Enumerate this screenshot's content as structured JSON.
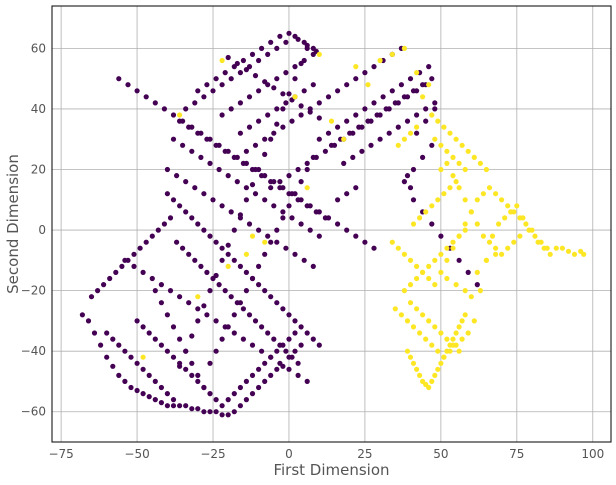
{
  "chart_data": {
    "type": "scatter",
    "xlabel": "First Dimension",
    "ylabel": "Second Dimension",
    "xlim": [
      -78,
      106
    ],
    "ylim": [
      -70,
      74
    ],
    "xticks": [
      -75,
      -50,
      -25,
      0,
      25,
      50,
      75,
      100
    ],
    "yticks": [
      -60,
      -40,
      -20,
      0,
      20,
      40,
      60
    ],
    "grid": true,
    "colors": {
      "class_0": "#440154",
      "class_1": "#fde725",
      "grid": "#b0b0b0",
      "frame": "#000000",
      "text": "#555555"
    },
    "series": [
      {
        "color_key": "class_0",
        "x": [
          -68,
          -66,
          -64,
          -62,
          -60,
          -58,
          -56,
          -54,
          -52,
          -50,
          -48,
          -46,
          -44,
          -42,
          -40,
          -38,
          -36,
          -34,
          -32,
          -30,
          -28,
          -26,
          -24,
          -22,
          -20,
          -18,
          -16,
          -14,
          -12,
          -10,
          -8,
          -6,
          -4,
          -2,
          0,
          2,
          4,
          -65,
          -63,
          -61,
          -59,
          -57,
          -55,
          -53,
          -51,
          -49,
          -47,
          -45,
          -43,
          -41,
          -39,
          -37,
          -35,
          -33,
          -31,
          -29,
          -27,
          -25,
          -23,
          -21,
          -19,
          -17,
          -15,
          -13,
          -11,
          -9,
          -7,
          -5,
          -3,
          -1,
          1,
          3,
          -60,
          -58,
          -56,
          -54,
          -52,
          -50,
          -48,
          -46,
          -44,
          -42,
          -40,
          -38,
          -36,
          -34,
          -32,
          -30,
          -28,
          -26,
          -24,
          -22,
          -20,
          -18,
          -16,
          -14,
          -12,
          -10,
          -8,
          -6,
          -4,
          -2,
          0,
          2,
          4,
          6,
          -44,
          -42,
          -40,
          -38,
          -36,
          -34,
          -32,
          -30,
          -28,
          -26,
          -24,
          -22,
          -20,
          -18,
          -16,
          -14,
          -12,
          -10,
          -8,
          -6,
          -4,
          -2,
          0,
          2,
          4,
          6,
          8,
          -40,
          -38,
          -36,
          -34,
          -32,
          -30,
          -28,
          -26,
          -24,
          -22,
          -20,
          -18,
          -16,
          -14,
          -12,
          -10,
          -8,
          -6,
          -4,
          -2,
          0,
          2,
          4,
          6,
          8,
          10,
          -40,
          -37,
          -34,
          -31,
          -28,
          -25,
          -22,
          -19,
          -16,
          -13,
          -10,
          -7,
          -4,
          -1,
          2,
          5,
          8,
          -38,
          -35,
          -32,
          -29,
          -26,
          -23,
          -20,
          -17,
          -14,
          -11,
          -8,
          -5,
          -2,
          1,
          4,
          7,
          10,
          -36,
          -33,
          -30,
          -27,
          -24,
          -21,
          -18,
          -15,
          -12,
          -9,
          -6,
          -3,
          0,
          3,
          6,
          9,
          12,
          -34,
          -31,
          -28,
          -25,
          -22,
          -19,
          -16,
          -13,
          -10,
          -7,
          -4,
          -1,
          2,
          5,
          8,
          -30,
          -27,
          -24,
          -21,
          -18,
          -15,
          -12,
          -9,
          -6,
          -3,
          0,
          3,
          6,
          9,
          -22,
          -19,
          -16,
          -13,
          -10,
          -7,
          -4,
          -1,
          2,
          5,
          8,
          -16,
          -13,
          -10,
          -7,
          -4,
          -1,
          2,
          5,
          8,
          -14,
          -11,
          -8,
          -5,
          -2,
          1,
          4,
          7,
          10,
          13,
          16,
          19,
          22,
          25,
          28,
          31,
          34,
          37,
          -6,
          -3,
          0,
          3,
          6,
          9,
          12,
          15,
          18,
          21,
          24,
          27,
          30,
          33,
          36,
          39,
          42,
          45,
          10,
          13,
          16,
          19,
          22,
          25,
          28,
          31,
          34,
          37,
          40,
          43,
          46,
          14,
          17,
          20,
          23,
          26,
          29,
          32,
          35,
          38,
          41,
          44,
          47,
          18,
          21,
          24,
          27,
          30,
          33,
          36,
          39,
          42,
          45,
          48,
          16,
          19,
          22,
          38,
          41,
          44,
          47,
          42,
          45,
          48,
          39,
          40,
          41,
          44,
          47,
          50,
          53,
          56,
          59,
          62,
          -50,
          -48,
          -46,
          -44,
          -42,
          -40,
          -38,
          -36,
          -34,
          -32,
          -30,
          -28,
          -26,
          -24,
          -22,
          -20,
          -18,
          -16,
          -14,
          -12,
          -10,
          -8,
          -6,
          -4,
          -2,
          0,
          2,
          -54,
          -51,
          -48,
          -45,
          -42,
          -39,
          -36,
          -33,
          -30,
          -27,
          -24,
          -21,
          -18,
          -15,
          -12,
          -9,
          -6,
          -3,
          0,
          3,
          6,
          -56,
          -53,
          -50,
          -47,
          -44,
          -41,
          -38,
          -35,
          -32,
          -29,
          -26,
          -23,
          -20,
          -17,
          -14,
          -11,
          -8,
          -5,
          -2,
          1,
          4,
          7,
          10,
          13,
          16,
          19,
          22,
          25,
          28,
          -20,
          -17,
          -14,
          -11,
          -8,
          -5,
          -2,
          1,
          4,
          7,
          10
        ],
        "y": [
          -28,
          -30,
          -34,
          -38,
          -42,
          -45,
          -48,
          -50,
          -52,
          -53,
          -54,
          -55,
          -56,
          -57,
          -58,
          -58,
          -58,
          -58,
          -59,
          -59,
          -60,
          -60,
          -60,
          -61,
          -61,
          -60,
          -58,
          -56,
          -54,
          -52,
          -50,
          -48,
          -46,
          -45,
          -42,
          -40,
          -38,
          -22,
          -20,
          -18,
          -16,
          -14,
          -12,
          -10,
          -8,
          -6,
          -4,
          -2,
          0,
          2,
          4,
          -4,
          -6,
          -8,
          -10,
          -12,
          -14,
          -16,
          -18,
          -20,
          -22,
          -24,
          -26,
          -28,
          -30,
          -32,
          -34,
          -36,
          -38,
          -40,
          -42,
          -44,
          -34,
          -36,
          -38,
          -40,
          -42,
          -44,
          -46,
          -48,
          -50,
          -52,
          -54,
          -56,
          -45,
          -40,
          -35,
          -30,
          -25,
          -20,
          -15,
          -10,
          -5,
          0,
          5,
          10,
          15,
          20,
          25,
          30,
          35,
          40,
          45,
          50,
          55,
          60,
          -20,
          -24,
          -28,
          -32,
          -36,
          -40,
          -44,
          -48,
          -52,
          -44,
          -40,
          -36,
          -32,
          -28,
          -24,
          -20,
          -16,
          -12,
          -8,
          -4,
          0,
          4,
          8,
          12,
          16,
          20,
          24,
          12,
          10,
          8,
          6,
          4,
          2,
          0,
          -2,
          -4,
          -6,
          -8,
          -10,
          -12,
          -14,
          -16,
          -18,
          -20,
          -22,
          -24,
          -26,
          -28,
          -30,
          -32,
          -34,
          -36,
          -38,
          20,
          18,
          16,
          14,
          12,
          10,
          8,
          6,
          4,
          2,
          0,
          -2,
          -4,
          -6,
          -8,
          -10,
          -12,
          30,
          28,
          26,
          24,
          22,
          20,
          18,
          16,
          14,
          12,
          10,
          8,
          6,
          4,
          2,
          0,
          -2,
          36,
          34,
          32,
          30,
          28,
          26,
          24,
          22,
          20,
          18,
          16,
          14,
          12,
          10,
          8,
          6,
          4,
          40,
          42,
          44,
          46,
          48,
          50,
          52,
          54,
          56,
          58,
          60,
          62,
          64,
          62,
          60,
          46,
          48,
          50,
          52,
          54,
          56,
          58,
          60,
          62,
          64,
          65,
          63,
          61,
          59,
          38,
          40,
          42,
          44,
          46,
          48,
          50,
          52,
          54,
          56,
          58,
          32,
          34,
          36,
          38,
          40,
          42,
          44,
          46,
          48,
          26,
          28,
          30,
          32,
          34,
          36,
          38,
          40,
          42,
          44,
          46,
          48,
          50,
          52,
          54,
          56,
          58,
          60,
          14,
          16,
          18,
          20,
          22,
          24,
          26,
          28,
          30,
          32,
          34,
          36,
          38,
          40,
          42,
          44,
          46,
          48,
          30,
          32,
          34,
          36,
          38,
          40,
          42,
          44,
          46,
          48,
          50,
          52,
          54,
          28,
          30,
          32,
          34,
          36,
          38,
          40,
          42,
          44,
          46,
          48,
          50,
          22,
          24,
          26,
          28,
          30,
          32,
          34,
          36,
          38,
          40,
          42,
          10,
          12,
          14,
          16,
          20,
          24,
          28,
          32,
          36,
          40,
          18,
          14,
          10,
          6,
          2,
          -2,
          -6,
          -10,
          -14,
          -18,
          -30,
          -32,
          -34,
          -36,
          -38,
          -40,
          -42,
          -44,
          -46,
          -48,
          -50,
          -52,
          -54,
          -56,
          -58,
          -56,
          -54,
          -52,
          -50,
          -48,
          -46,
          -44,
          -42,
          -40,
          -38,
          -36,
          -34,
          -10,
          -12,
          -14,
          -16,
          -18,
          -20,
          -22,
          -24,
          -26,
          -28,
          -30,
          -32,
          -34,
          -36,
          -38,
          -40,
          -42,
          -44,
          -46,
          -48,
          -50,
          50,
          48,
          46,
          44,
          42,
          40,
          38,
          36,
          34,
          32,
          30,
          28,
          26,
          24,
          22,
          20,
          18,
          16,
          14,
          12,
          10,
          8,
          6,
          4,
          2,
          0,
          -2,
          -4,
          -6,
          57,
          55,
          53,
          51,
          49,
          47,
          45,
          43,
          41,
          39,
          37
        ]
      },
      {
        "color_key": "class_1",
        "x": [
          34,
          36,
          38,
          40,
          42,
          44,
          46,
          48,
          50,
          52,
          54,
          56,
          58,
          60,
          62,
          64,
          66,
          68,
          70,
          72,
          74,
          76,
          78,
          80,
          82,
          84,
          86,
          88,
          90,
          92,
          94,
          96,
          97,
          35,
          37,
          39,
          41,
          43,
          45,
          47,
          49,
          51,
          53,
          55,
          57,
          59,
          61,
          63,
          65,
          67,
          69,
          71,
          73,
          75,
          77,
          79,
          81,
          83,
          85,
          39,
          40,
          41,
          42,
          43,
          44,
          45,
          46,
          47,
          48,
          49,
          50,
          51,
          52,
          53,
          54,
          55,
          56,
          57,
          58,
          38,
          40,
          42,
          44,
          46,
          48,
          50,
          52,
          54,
          56,
          58,
          40,
          42,
          44,
          46,
          48,
          50,
          52,
          54,
          56,
          41,
          43,
          45,
          47,
          49,
          51,
          53,
          55,
          50,
          52,
          54,
          56,
          58,
          60,
          62,
          64,
          66,
          68,
          70,
          72,
          74,
          76,
          48,
          50,
          52,
          54,
          56,
          58,
          47,
          49,
          51,
          53,
          55,
          57,
          59,
          61,
          63,
          65,
          -48,
          -30,
          -12,
          6,
          18,
          26,
          10,
          -22,
          -36,
          2,
          14,
          22,
          -20,
          -14,
          -8,
          30,
          34,
          38,
          42,
          46,
          44,
          36,
          38,
          40,
          42,
          52,
          55,
          58,
          60,
          62,
          65,
          68
        ],
        "y": [
          -4,
          -6,
          -8,
          -10,
          -12,
          -14,
          -16,
          -18,
          -14,
          -10,
          -6,
          -2,
          2,
          6,
          10,
          12,
          14,
          12,
          10,
          8,
          6,
          4,
          2,
          0,
          -4,
          -6,
          -8,
          -6,
          -6,
          -7,
          -8,
          -7,
          -8,
          -26,
          -28,
          -30,
          -32,
          -34,
          -36,
          -38,
          -40,
          -42,
          -40,
          -38,
          -36,
          -34,
          -30,
          -20,
          -10,
          -2,
          2,
          4,
          6,
          8,
          4,
          0,
          -2,
          -4,
          -6,
          -40,
          -42,
          -44,
          -46,
          -48,
          -50,
          -51,
          -52,
          -50,
          -48,
          -46,
          -44,
          -42,
          -40,
          -38,
          -36,
          -34,
          -32,
          -30,
          -28,
          -20,
          -18,
          -16,
          -14,
          -12,
          -10,
          -8,
          -6,
          -4,
          -2,
          0,
          -24,
          -26,
          -28,
          -30,
          -32,
          -34,
          -36,
          -38,
          -40,
          2,
          4,
          6,
          8,
          10,
          12,
          14,
          16,
          20,
          22,
          18,
          14,
          10,
          6,
          2,
          -2,
          -4,
          -6,
          -8,
          -6,
          -4,
          -2,
          30,
          28,
          26,
          24,
          22,
          20,
          38,
          36,
          34,
          32,
          30,
          28,
          26,
          24,
          22,
          20,
          -42,
          -22,
          -2,
          14,
          30,
          48,
          58,
          56,
          38,
          44,
          36,
          54,
          -12,
          -8,
          -4,
          56,
          58,
          60,
          52,
          48,
          44,
          28,
          30,
          32,
          34,
          -16,
          -18,
          -20,
          -22,
          -14,
          -10,
          -8
        ]
      }
    ]
  }
}
